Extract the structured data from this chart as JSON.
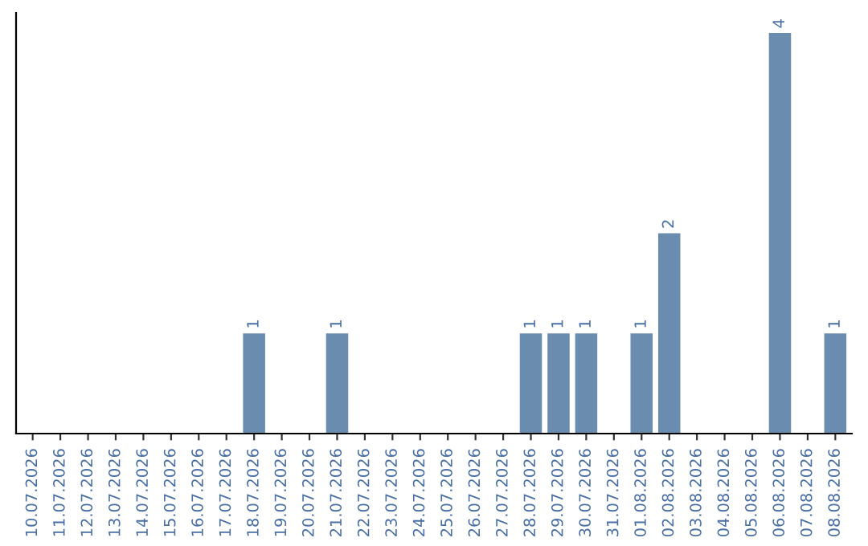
{
  "chart_data": {
    "type": "bar",
    "categories": [
      "10.07.2026",
      "11.07.2026",
      "12.07.2026",
      "13.07.2026",
      "14.07.2026",
      "15.07.2026",
      "16.07.2026",
      "17.07.2026",
      "18.07.2026",
      "19.07.2026",
      "20.07.2026",
      "21.07.2026",
      "22.07.2026",
      "23.07.2026",
      "24.07.2026",
      "25.07.2026",
      "26.07.2026",
      "27.07.2026",
      "28.07.2026",
      "29.07.2026",
      "30.07.2026",
      "31.07.2026",
      "01.08.2026",
      "02.08.2026",
      "03.08.2026",
      "04.08.2026",
      "05.08.2026",
      "06.08.2026",
      "07.08.2026",
      "08.08.2026"
    ],
    "values": [
      0,
      0,
      0,
      0,
      0,
      0,
      0,
      0,
      1,
      0,
      0,
      1,
      0,
      0,
      0,
      0,
      0,
      0,
      1,
      1,
      1,
      0,
      1,
      2,
      0,
      0,
      0,
      4,
      0,
      1
    ],
    "value_labels": [
      null,
      null,
      null,
      null,
      null,
      null,
      null,
      null,
      "1",
      null,
      null,
      "1",
      null,
      null,
      null,
      null,
      null,
      null,
      "1",
      "1",
      "1",
      null,
      "1",
      "2",
      null,
      null,
      null,
      "4",
      null,
      "1"
    ],
    "color": "#6a8caf",
    "ylim": [
      0,
      4.2
    ],
    "tick_labels": "x",
    "grid": false,
    "legend": false
  }
}
